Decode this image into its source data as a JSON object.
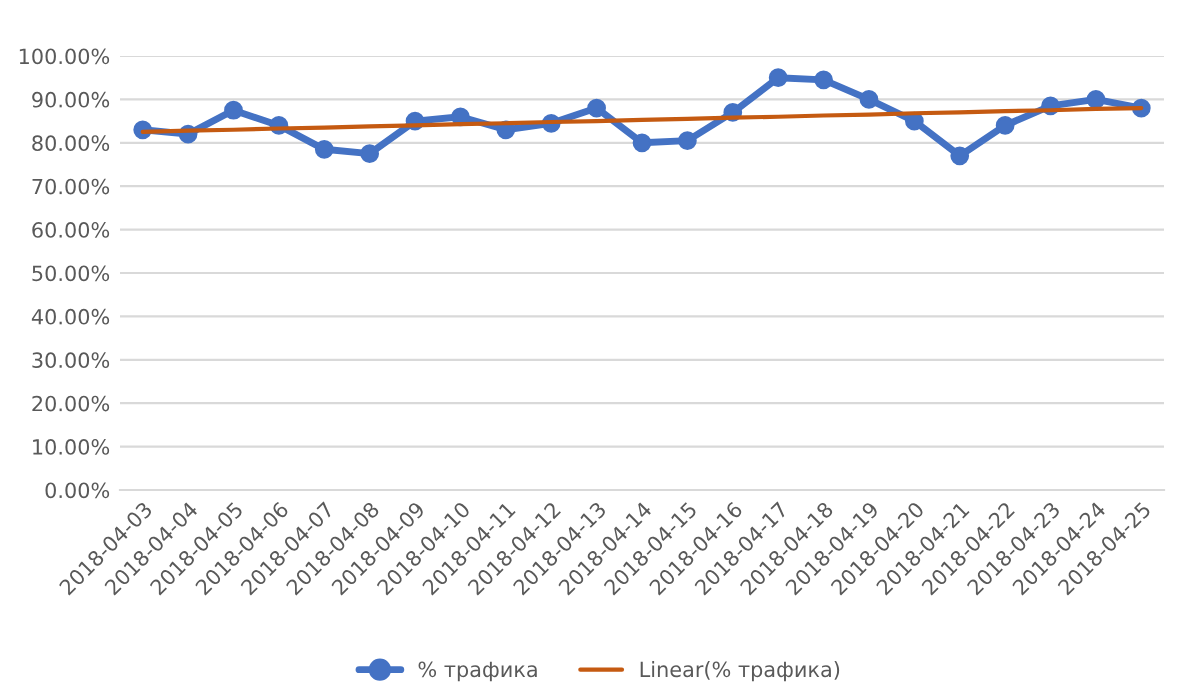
{
  "chart_data": {
    "type": "line",
    "categories": [
      "2018-04-03",
      "2018-04-04",
      "2018-04-05",
      "2018-04-06",
      "2018-04-07",
      "2018-04-08",
      "2018-04-09",
      "2018-04-10",
      "2018-04-11",
      "2018-04-12",
      "2018-04-13",
      "2018-04-14",
      "2018-04-15",
      "2018-04-16",
      "2018-04-17",
      "2018-04-18",
      "2018-04-19",
      "2018-04-20",
      "2018-04-21",
      "2018-04-22",
      "2018-04-23",
      "2018-04-24",
      "2018-04-25"
    ],
    "series": [
      {
        "name": "% трафика",
        "color": "#4472c4",
        "marker": "circle",
        "values": [
          83,
          82,
          87.5,
          84,
          78.5,
          77.5,
          85,
          86,
          83,
          84.5,
          88,
          80,
          80.5,
          87,
          95,
          94.5,
          90,
          85,
          77,
          84,
          88.5,
          90,
          88
        ]
      },
      {
        "name": "Linear(% трафика)",
        "color": "#c55a11",
        "marker": "none",
        "values": [
          82.5,
          82.8,
          83,
          83.3,
          83.5,
          83.8,
          84,
          84.3,
          84.5,
          84.8,
          85,
          85.3,
          85.5,
          85.8,
          86,
          86.3,
          86.5,
          86.8,
          87,
          87.3,
          87.5,
          87.8,
          88
        ]
      }
    ],
    "ylim": [
      0,
      100
    ],
    "yticks": [
      {
        "value": 0,
        "label": "0.00%"
      },
      {
        "value": 10,
        "label": "10.00%"
      },
      {
        "value": 20,
        "label": "20.00%"
      },
      {
        "value": 30,
        "label": "30.00%"
      },
      {
        "value": 40,
        "label": "40.00%"
      },
      {
        "value": 50,
        "label": "50.00%"
      },
      {
        "value": 60,
        "label": "60.00%"
      },
      {
        "value": 70,
        "label": "70.00%"
      },
      {
        "value": 80,
        "label": "80.00%"
      },
      {
        "value": 90,
        "label": "90.00%"
      },
      {
        "value": 100,
        "label": "100.00%"
      }
    ],
    "grid": "y",
    "legend": "bottom"
  }
}
